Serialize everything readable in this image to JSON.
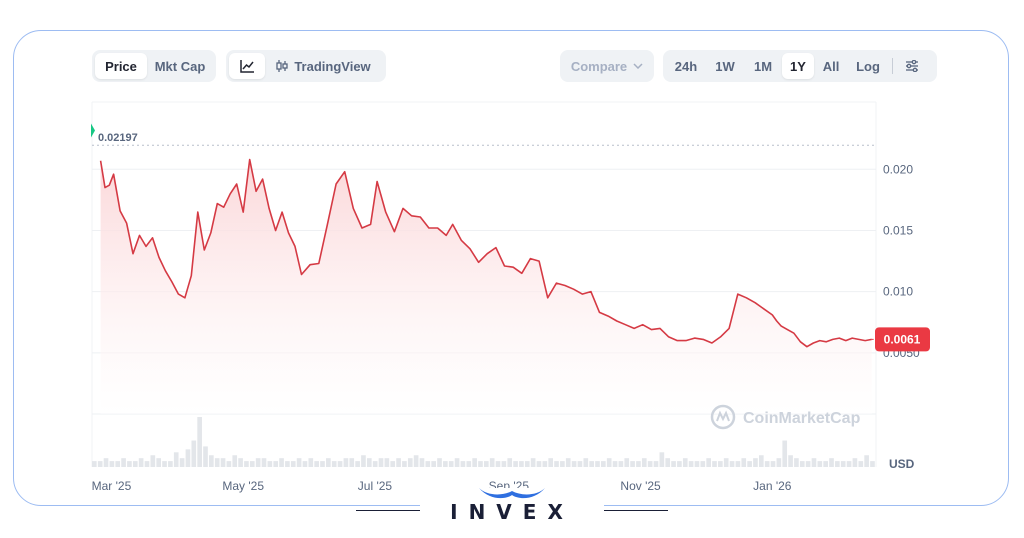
{
  "toolbar": {
    "view_tabs": [
      "Price",
      "Mkt Cap"
    ],
    "active_view": "Price",
    "chart_modes": [
      "line-chart-icon",
      "TradingView"
    ],
    "compare_label": "Compare",
    "ranges": [
      "24h",
      "1W",
      "1M",
      "1Y",
      "All"
    ],
    "active_range": "1Y",
    "scale_label": "Log",
    "settings_icon": "sliders-icon"
  },
  "colors": {
    "line": "#d53a44",
    "area_top": "#fbd5d7",
    "price_badge": "#ea3943",
    "start_marker": "#16c784",
    "frame_border": "#9dbcf2"
  },
  "chart_data": {
    "type": "area",
    "x_tick_labels": [
      "Mar '25",
      "May '25",
      "Jul '25",
      "Sep '25",
      "Nov '25",
      "Jan '26"
    ],
    "x_ticks": [
      "2025-03-01",
      "2025-05-01",
      "2025-07-01",
      "2025-09-01",
      "2025-11-01",
      "2026-01-01"
    ],
    "xlim": [
      "2025-02-20",
      "2026-02-18"
    ],
    "y_tick_labels": [
      "0.0050",
      "0.010",
      "0.015",
      "0.020"
    ],
    "y_ticks": [
      0.005,
      0.01,
      0.015,
      0.02
    ],
    "ylim": [
      0.0,
      0.0255
    ],
    "y_unit": "USD",
    "high_label": "0.02197",
    "high_value": 0.02197,
    "current_label": "0.0061",
    "current_value": 0.0061,
    "watermark": "CoinMarketCap",
    "grid": true,
    "volume_bars": true,
    "series": [
      {
        "x": [
          "2025-02-24",
          "2025-02-26",
          "2025-02-28",
          "2025-03-02",
          "2025-03-05",
          "2025-03-08",
          "2025-03-11",
          "2025-03-14",
          "2025-03-17",
          "2025-03-20",
          "2025-03-23",
          "2025-03-26",
          "2025-03-29",
          "2025-04-01",
          "2025-04-04",
          "2025-04-07",
          "2025-04-10",
          "2025-04-13",
          "2025-04-16",
          "2025-04-19",
          "2025-04-22",
          "2025-04-25",
          "2025-04-28",
          "2025-05-01",
          "2025-05-04",
          "2025-05-07",
          "2025-05-10",
          "2025-05-13",
          "2025-05-16",
          "2025-05-19",
          "2025-05-22",
          "2025-05-25",
          "2025-05-28",
          "2025-06-01",
          "2025-06-05",
          "2025-06-09",
          "2025-06-13",
          "2025-06-17",
          "2025-06-21",
          "2025-06-25",
          "2025-06-29",
          "2025-07-02",
          "2025-07-06",
          "2025-07-10",
          "2025-07-14",
          "2025-07-18",
          "2025-07-22",
          "2025-07-26",
          "2025-07-30",
          "2025-08-03",
          "2025-08-06",
          "2025-08-10",
          "2025-08-14",
          "2025-08-18",
          "2025-08-22",
          "2025-08-26",
          "2025-08-30",
          "2025-09-03",
          "2025-09-07",
          "2025-09-11",
          "2025-09-15",
          "2025-09-19",
          "2025-09-23",
          "2025-09-27",
          "2025-10-01",
          "2025-10-05",
          "2025-10-09",
          "2025-10-13",
          "2025-10-17",
          "2025-10-21",
          "2025-10-25",
          "2025-10-29",
          "2025-11-02",
          "2025-11-06",
          "2025-11-10",
          "2025-11-14",
          "2025-11-18",
          "2025-11-22",
          "2025-11-26",
          "2025-11-30",
          "2025-12-04",
          "2025-12-08",
          "2025-12-12",
          "2025-12-16",
          "2025-12-20",
          "2025-12-24",
          "2025-12-28",
          "2026-01-01",
          "2026-01-03",
          "2026-01-05",
          "2026-01-08",
          "2026-01-11",
          "2026-01-14",
          "2026-01-17",
          "2026-01-20",
          "2026-01-23",
          "2026-01-26",
          "2026-01-29",
          "2026-02-01",
          "2026-02-04",
          "2026-02-07",
          "2026-02-10",
          "2026-02-13",
          "2026-02-16"
        ],
        "y": [
          0.0207,
          0.0185,
          0.0187,
          0.0196,
          0.0166,
          0.0156,
          0.0131,
          0.0146,
          0.0137,
          0.0144,
          0.0128,
          0.0117,
          0.0108,
          0.0098,
          0.0095,
          0.0113,
          0.0165,
          0.0134,
          0.0148,
          0.0172,
          0.0169,
          0.018,
          0.0188,
          0.0165,
          0.0208,
          0.0182,
          0.0192,
          0.0168,
          0.015,
          0.0165,
          0.0148,
          0.0137,
          0.0114,
          0.0122,
          0.0123,
          0.0155,
          0.0188,
          0.0198,
          0.0168,
          0.0152,
          0.0155,
          0.019,
          0.0165,
          0.0149,
          0.0168,
          0.0162,
          0.0161,
          0.0152,
          0.0152,
          0.0146,
          0.0155,
          0.0142,
          0.0135,
          0.0124,
          0.0131,
          0.0136,
          0.0121,
          0.012,
          0.0115,
          0.0127,
          0.0125,
          0.0095,
          0.0107,
          0.0105,
          0.0102,
          0.0098,
          0.01,
          0.0083,
          0.008,
          0.0076,
          0.0073,
          0.007,
          0.0073,
          0.0069,
          0.007,
          0.0063,
          0.006,
          0.006,
          0.0062,
          0.0061,
          0.0058,
          0.0063,
          0.007,
          0.0098,
          0.0095,
          0.0091,
          0.0086,
          0.0081,
          0.0076,
          0.0072,
          0.0069,
          0.0066,
          0.0059,
          0.0055,
          0.0058,
          0.006,
          0.0059,
          0.0061,
          0.0062,
          0.006,
          0.0062,
          0.0061,
          0.006,
          0.0061
        ]
      }
    ],
    "volume": [
      2,
      2,
      3,
      2,
      2,
      3,
      2,
      2,
      3,
      2,
      4,
      3,
      2,
      2,
      5,
      3,
      6,
      9,
      17,
      7,
      4,
      3,
      3,
      2,
      4,
      3,
      2,
      2,
      3,
      3,
      2,
      2,
      3,
      2,
      2,
      3,
      2,
      3,
      2,
      2,
      3,
      2,
      2,
      3,
      3,
      2,
      4,
      3,
      2,
      3,
      3,
      2,
      3,
      2,
      3,
      4,
      3,
      2,
      2,
      3,
      2,
      2,
      3,
      2,
      2,
      3,
      2,
      2,
      3,
      2,
      2,
      3,
      2,
      2,
      2,
      3,
      2,
      2,
      3,
      2,
      2,
      3,
      2,
      2,
      3,
      2,
      2,
      2,
      3,
      2,
      2,
      3,
      2,
      2,
      3,
      2,
      2,
      5,
      3,
      2,
      2,
      3,
      2,
      2,
      2,
      3,
      2,
      2,
      3,
      2,
      2,
      3,
      2,
      3,
      4,
      2,
      2,
      3,
      9,
      4,
      3,
      2,
      2,
      3,
      2,
      2,
      3,
      2,
      2,
      2,
      3,
      2,
      4,
      2
    ]
  },
  "brand": {
    "text": "INVEX"
  }
}
